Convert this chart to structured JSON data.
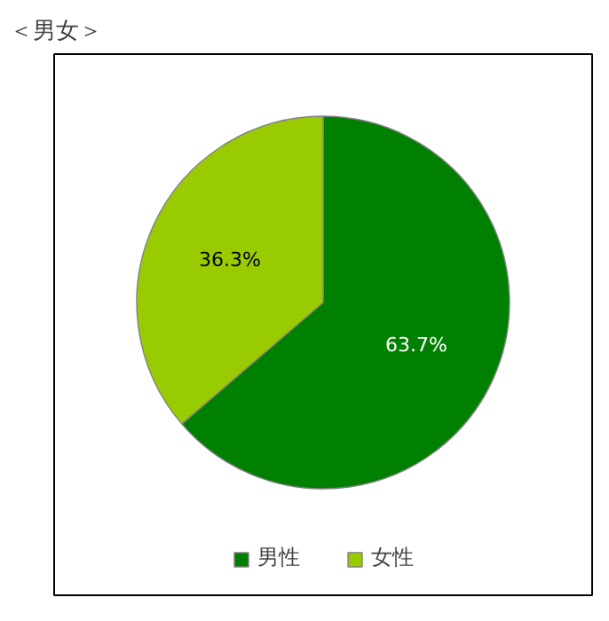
{
  "chart_data": {
    "type": "pie",
    "title": "＜男女＞",
    "categories": [
      "男性",
      "女性"
    ],
    "values": [
      63.7,
      36.3
    ],
    "colors": [
      "#008000",
      "#99cc00"
    ],
    "value_labels": [
      "63.7%",
      "36.3%"
    ],
    "legend": "bottom"
  }
}
